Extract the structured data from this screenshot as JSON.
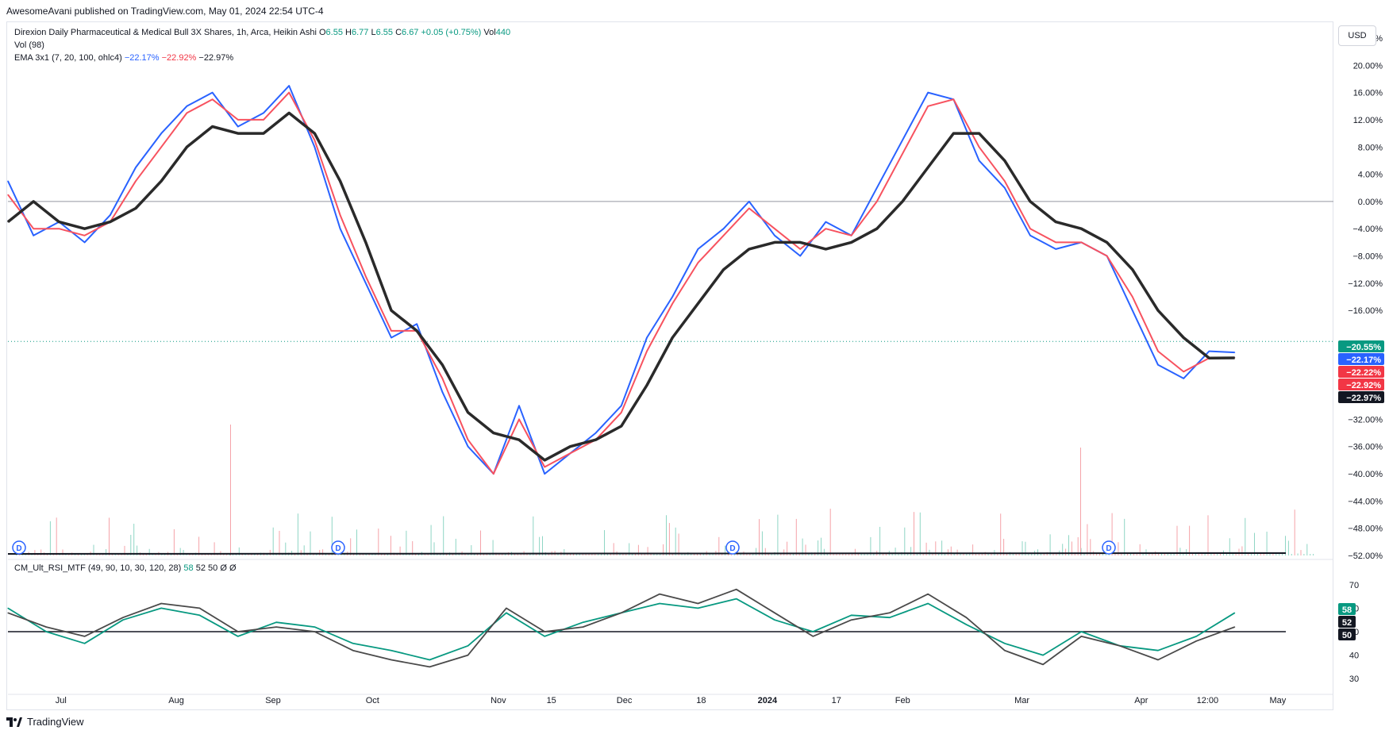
{
  "publisher": "AwesomeAvani published on TradingView.com, May 01, 2024 22:54 UTC-4",
  "legend": {
    "symbol": "Direxion Daily Pharmaceutical & Medical Bull 3X Shares, 1h, Arca, Heikin Ashi",
    "o_label": "O",
    "o_value": "6.55",
    "h_label": "H",
    "h_value": "6.77",
    "l_label": "L",
    "l_value": "6.55",
    "c_label": "C",
    "c_value": "6.67",
    "change": "+0.05 (+0.75%)",
    "vol_label": "Vol",
    "vol_value": "440",
    "vol_indicator": "Vol (98)",
    "ema_label": "EMA 3x1 (7, 20, 100, ohlc4)",
    "ema_v1": "−22.17%",
    "ema_v2": "−22.92%",
    "ema_v3": "−22.97%"
  },
  "rsi_legend": {
    "label": "CM_Ult_RSI_MTF (49, 90, 10, 30, 120, 28)",
    "v1": "58",
    "v2": "52",
    "v3": "50",
    "v4": "Ø",
    "v5": "Ø"
  },
  "currency_button": "USD",
  "footer_brand": "TradingView",
  "icons": [
    "dividend-marker-icon",
    "tradingview-logo-icon"
  ],
  "colors": {
    "up": "#089981",
    "down": "#f23645",
    "ema_fast": "#2962ff",
    "ema_mid": "#f7525f",
    "ema_slow": "#2a2a2a",
    "rsi_fast": "#089981",
    "rsi_slow": "#4a4a4a"
  },
  "chart_data": [
    {
      "type": "line",
      "scale": "percent",
      "ylim": [
        -52,
        24
      ],
      "y_ticks": [
        "24.00%",
        "20.00%",
        "16.00%",
        "12.00%",
        "8.00%",
        "4.00%",
        "0.00%",
        "−4.00%",
        "−8.00%",
        "−12.00%",
        "−16.00%",
        "−32.00%",
        "−36.00%",
        "−40.00%",
        "−44.00%",
        "−48.00%",
        "−52.00%"
      ],
      "y_tick_values": [
        24,
        20,
        16,
        12,
        8,
        4,
        0,
        -4,
        -8,
        -12,
        -16,
        -32,
        -36,
        -40,
        -44,
        -48,
        -52
      ],
      "x_labels": [
        "Jul",
        "Aug",
        "Sep",
        "Oct",
        "Nov",
        "15",
        "Dec",
        "18",
        "2024",
        "17",
        "Feb",
        "Mar",
        "Apr",
        "12:00",
        "May"
      ],
      "x_label_positions": [
        0.04,
        0.127,
        0.2,
        0.275,
        0.37,
        0.41,
        0.465,
        0.523,
        0.573,
        0.625,
        0.675,
        0.765,
        0.855,
        0.905,
        0.958
      ],
      "price_labels": [
        {
          "text": "−20.55%",
          "value": -20.55,
          "color": "#089981"
        },
        {
          "text": "−22.17%",
          "value": -22.17,
          "color": "#2962ff"
        },
        {
          "text": "−22.22%",
          "value": -22.22,
          "color": "#f23645"
        },
        {
          "text": "−22.92%",
          "value": -22.92,
          "color": "#f23645"
        },
        {
          "text": "−22.97%",
          "value": -22.97,
          "color": "#131722"
        }
      ],
      "series": [
        {
          "name": "EMA 7",
          "color": "#2962ff",
          "x": [
            0,
            0.02,
            0.04,
            0.06,
            0.08,
            0.1,
            0.12,
            0.14,
            0.16,
            0.18,
            0.2,
            0.22,
            0.24,
            0.26,
            0.28,
            0.3,
            0.32,
            0.34,
            0.36,
            0.38,
            0.4,
            0.42,
            0.44,
            0.46,
            0.48,
            0.5,
            0.52,
            0.54,
            0.56,
            0.58,
            0.6,
            0.62,
            0.64,
            0.66,
            0.68,
            0.7,
            0.72,
            0.74,
            0.76,
            0.78,
            0.8,
            0.82,
            0.84,
            0.86,
            0.88,
            0.9,
            0.92,
            0.94,
            0.96
          ],
          "y": [
            3,
            -5,
            -3,
            -6,
            -2,
            5,
            10,
            14,
            16,
            11,
            13,
            17,
            8,
            -4,
            -12,
            -20,
            -18,
            -28,
            -36,
            -40,
            -30,
            -40,
            -37,
            -34,
            -30,
            -20,
            -14,
            -7,
            -4,
            0,
            -5,
            -8,
            -3,
            -5,
            2,
            9,
            16,
            15,
            6,
            2,
            -5,
            -7,
            -6,
            -8,
            -16,
            -24,
            -26,
            -22,
            -22.17
          ]
        },
        {
          "name": "EMA 20",
          "color": "#f7525f",
          "x": [
            0,
            0.02,
            0.04,
            0.06,
            0.08,
            0.1,
            0.12,
            0.14,
            0.16,
            0.18,
            0.2,
            0.22,
            0.24,
            0.26,
            0.28,
            0.3,
            0.32,
            0.34,
            0.36,
            0.38,
            0.4,
            0.42,
            0.44,
            0.46,
            0.48,
            0.5,
            0.52,
            0.54,
            0.56,
            0.58,
            0.6,
            0.62,
            0.64,
            0.66,
            0.68,
            0.7,
            0.72,
            0.74,
            0.76,
            0.78,
            0.8,
            0.82,
            0.84,
            0.86,
            0.88,
            0.9,
            0.92,
            0.94,
            0.96
          ],
          "y": [
            1,
            -4,
            -4,
            -5,
            -3,
            3,
            8,
            13,
            15,
            12,
            12,
            16,
            9,
            -2,
            -11,
            -19,
            -19,
            -26,
            -35,
            -40,
            -32,
            -39,
            -37,
            -35,
            -31,
            -22,
            -15,
            -9,
            -5,
            -1,
            -4,
            -7,
            -4,
            -5,
            0,
            7,
            14,
            15,
            8,
            3,
            -4,
            -6,
            -6,
            -8,
            -14,
            -22,
            -25,
            -23,
            -22.92
          ]
        },
        {
          "name": "EMA 100",
          "color": "#2a2a2a",
          "x": [
            0,
            0.02,
            0.04,
            0.06,
            0.08,
            0.1,
            0.12,
            0.14,
            0.16,
            0.18,
            0.2,
            0.22,
            0.24,
            0.26,
            0.28,
            0.3,
            0.32,
            0.34,
            0.36,
            0.38,
            0.4,
            0.42,
            0.44,
            0.46,
            0.48,
            0.5,
            0.52,
            0.54,
            0.56,
            0.58,
            0.6,
            0.62,
            0.64,
            0.66,
            0.68,
            0.7,
            0.72,
            0.74,
            0.76,
            0.78,
            0.8,
            0.82,
            0.84,
            0.86,
            0.88,
            0.9,
            0.92,
            0.94,
            0.96
          ],
          "y": [
            -3,
            0,
            -3,
            -4,
            -3,
            -1,
            3,
            8,
            11,
            10,
            10,
            13,
            10,
            3,
            -6,
            -16,
            -19,
            -24,
            -31,
            -34,
            -35,
            -38,
            -36,
            -35,
            -33,
            -27,
            -20,
            -15,
            -10,
            -7,
            -6,
            -6,
            -7,
            -6,
            -4,
            0,
            5,
            10,
            10,
            6,
            0,
            -3,
            -4,
            -6,
            -10,
            -16,
            -20,
            -23,
            -22.97
          ]
        }
      ]
    },
    {
      "type": "line",
      "ylim": [
        25,
        75
      ],
      "y_ticks": [
        "70",
        "60",
        "50",
        "40",
        "30"
      ],
      "y_tick_values": [
        70,
        60,
        50,
        40,
        30
      ],
      "levels": [
        {
          "text": "58",
          "value": 58,
          "color": "#089981"
        },
        {
          "text": "52",
          "value": 52,
          "color": "#131722"
        },
        {
          "text": "50",
          "value": 50,
          "color": "#131722"
        }
      ],
      "series": [
        {
          "name": "RSI fast",
          "color": "#089981",
          "x": [
            0,
            0.03,
            0.06,
            0.09,
            0.12,
            0.15,
            0.18,
            0.21,
            0.24,
            0.27,
            0.3,
            0.33,
            0.36,
            0.39,
            0.42,
            0.45,
            0.48,
            0.51,
            0.54,
            0.57,
            0.6,
            0.63,
            0.66,
            0.69,
            0.72,
            0.75,
            0.78,
            0.81,
            0.84,
            0.87,
            0.9,
            0.93,
            0.96
          ],
          "y": [
            60,
            50,
            45,
            55,
            60,
            57,
            48,
            54,
            52,
            45,
            42,
            38,
            44,
            58,
            48,
            54,
            58,
            62,
            60,
            64,
            55,
            50,
            57,
            56,
            62,
            53,
            45,
            40,
            50,
            44,
            42,
            48,
            58
          ]
        },
        {
          "name": "RSI slow",
          "color": "#4a4a4a",
          "x": [
            0,
            0.03,
            0.06,
            0.09,
            0.12,
            0.15,
            0.18,
            0.21,
            0.24,
            0.27,
            0.3,
            0.33,
            0.36,
            0.39,
            0.42,
            0.45,
            0.48,
            0.51,
            0.54,
            0.57,
            0.6,
            0.63,
            0.66,
            0.69,
            0.72,
            0.75,
            0.78,
            0.81,
            0.84,
            0.87,
            0.9,
            0.93,
            0.96
          ],
          "y": [
            58,
            52,
            48,
            56,
            62,
            60,
            50,
            52,
            50,
            42,
            38,
            35,
            40,
            60,
            50,
            52,
            58,
            66,
            62,
            68,
            58,
            48,
            55,
            58,
            66,
            56,
            42,
            36,
            48,
            44,
            38,
            46,
            52
          ]
        }
      ]
    }
  ]
}
